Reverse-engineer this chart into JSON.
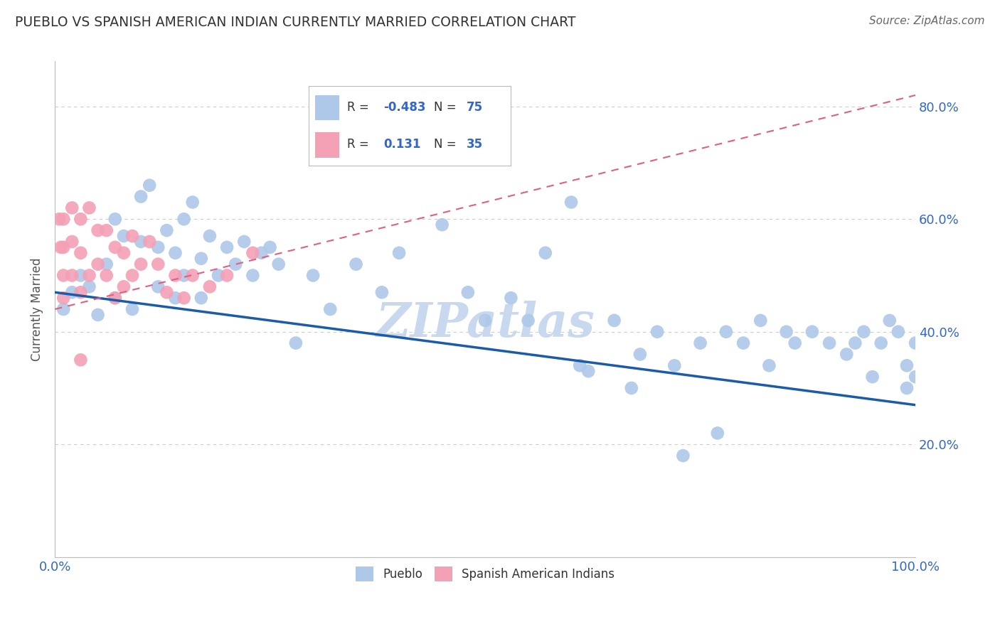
{
  "title": "PUEBLO VS SPANISH AMERICAN INDIAN CURRENTLY MARRIED CORRELATION CHART",
  "source": "Source: ZipAtlas.com",
  "ylabel": "Currently Married",
  "r_pueblo": -0.483,
  "n_pueblo": 75,
  "r_spanish": 0.131,
  "n_spanish": 35,
  "xlim": [
    0.0,
    1.0
  ],
  "ylim": [
    0.0,
    0.88
  ],
  "pueblo_color": "#adc8e8",
  "spanish_color": "#f4a0b5",
  "pueblo_line_color": "#1a5ca8",
  "spanish_line_color": "#e06080",
  "grid_color": "#cccccc",
  "watermark": "ZIPatlas",
  "watermark_color": "#c8d8ee",
  "pueblo_line_x0": 0.0,
  "pueblo_line_y0": 0.47,
  "pueblo_line_x1": 1.0,
  "pueblo_line_y1": 0.27,
  "spanish_line_x0": 0.0,
  "spanish_line_y0": 0.44,
  "spanish_line_x1": 1.0,
  "spanish_line_y1": 0.82,
  "pueblo_x": [
    0.01,
    0.02,
    0.03,
    0.04,
    0.05,
    0.06,
    0.07,
    0.07,
    0.08,
    0.09,
    0.1,
    0.1,
    0.11,
    0.12,
    0.12,
    0.13,
    0.14,
    0.14,
    0.15,
    0.15,
    0.16,
    0.17,
    0.17,
    0.18,
    0.19,
    0.2,
    0.21,
    0.22,
    0.23,
    0.24,
    0.25,
    0.26,
    0.28,
    0.3,
    0.32,
    0.35,
    0.38,
    0.4,
    0.42,
    0.45,
    0.48,
    0.5,
    0.53,
    0.55,
    0.57,
    0.6,
    0.62,
    0.65,
    0.68,
    0.7,
    0.72,
    0.73,
    0.75,
    0.77,
    0.78,
    0.8,
    0.82,
    0.83,
    0.85,
    0.86,
    0.88,
    0.9,
    0.92,
    0.93,
    0.94,
    0.95,
    0.96,
    0.97,
    0.98,
    0.99,
    0.99,
    1.0,
    1.0,
    0.61,
    0.67
  ],
  "pueblo_y": [
    0.44,
    0.47,
    0.5,
    0.48,
    0.43,
    0.52,
    0.6,
    0.46,
    0.57,
    0.44,
    0.64,
    0.56,
    0.66,
    0.55,
    0.48,
    0.58,
    0.54,
    0.46,
    0.6,
    0.5,
    0.63,
    0.53,
    0.46,
    0.57,
    0.5,
    0.55,
    0.52,
    0.56,
    0.5,
    0.54,
    0.55,
    0.52,
    0.38,
    0.5,
    0.44,
    0.52,
    0.47,
    0.54,
    0.72,
    0.59,
    0.47,
    0.42,
    0.46,
    0.42,
    0.54,
    0.63,
    0.33,
    0.42,
    0.36,
    0.4,
    0.34,
    0.18,
    0.38,
    0.22,
    0.4,
    0.38,
    0.42,
    0.34,
    0.4,
    0.38,
    0.4,
    0.38,
    0.36,
    0.38,
    0.4,
    0.32,
    0.38,
    0.42,
    0.4,
    0.34,
    0.3,
    0.38,
    0.32,
    0.34,
    0.3
  ],
  "spanish_x": [
    0.005,
    0.007,
    0.01,
    0.01,
    0.01,
    0.01,
    0.02,
    0.02,
    0.02,
    0.03,
    0.03,
    0.03,
    0.04,
    0.04,
    0.05,
    0.05,
    0.06,
    0.06,
    0.07,
    0.07,
    0.08,
    0.08,
    0.09,
    0.09,
    0.1,
    0.11,
    0.12,
    0.13,
    0.14,
    0.15,
    0.16,
    0.18,
    0.2,
    0.23,
    0.03
  ],
  "spanish_y": [
    0.6,
    0.55,
    0.6,
    0.55,
    0.5,
    0.46,
    0.62,
    0.56,
    0.5,
    0.6,
    0.54,
    0.47,
    0.62,
    0.5,
    0.58,
    0.52,
    0.58,
    0.5,
    0.55,
    0.46,
    0.54,
    0.48,
    0.57,
    0.5,
    0.52,
    0.56,
    0.52,
    0.47,
    0.5,
    0.46,
    0.5,
    0.48,
    0.5,
    0.54,
    0.35
  ]
}
